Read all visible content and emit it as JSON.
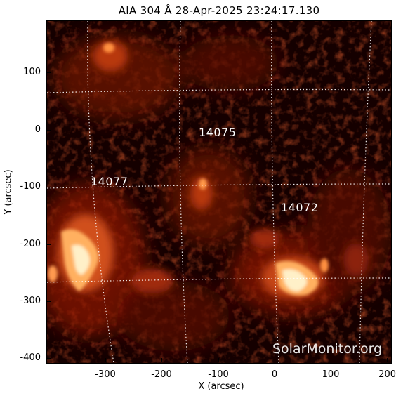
{
  "title": "AIA 304 Å 28-Apr-2025 23:24:17.130",
  "axes": {
    "xlabel": "X (arcsec)",
    "ylabel": "Y (arcsec)",
    "xticks": [
      "-300",
      "-200",
      "-100",
      "0",
      "100",
      "200"
    ],
    "yticks": [
      "100",
      "0",
      "-100",
      "-200",
      "-300",
      "-400"
    ]
  },
  "regions": [
    {
      "id": "14075",
      "label": "14075"
    },
    {
      "id": "14077",
      "label": "14077"
    },
    {
      "id": "14072",
      "label": "14072"
    }
  ],
  "watermark": "SolarMonitor.org",
  "colors": {
    "background": "#150000",
    "mid": "#a02008",
    "bright": "#ffd090",
    "grid": "#ffffff"
  }
}
